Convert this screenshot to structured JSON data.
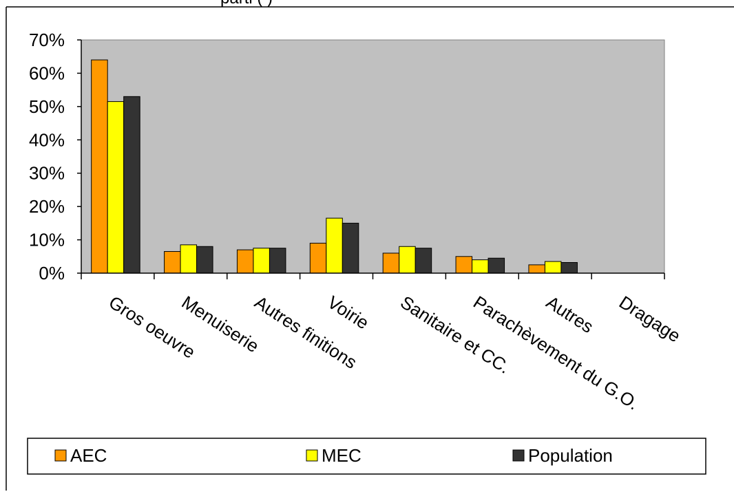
{
  "top_fragment": "parti  (                      )",
  "chart_data": {
    "type": "bar",
    "categories": [
      "Gros oeuvre",
      "Menuiserie",
      "Autres finitions",
      "Voirie",
      "Sanitaire et CC.",
      "Parachèvement du G.O.",
      "Autres",
      "Dragage"
    ],
    "series": [
      {
        "name": "AEC",
        "color": "#ff9900",
        "values": [
          64,
          6.5,
          7,
          9,
          6,
          5,
          2.5,
          0
        ]
      },
      {
        "name": "MEC",
        "color": "#ffff00",
        "values": [
          51.5,
          8.5,
          7.5,
          16.5,
          8,
          4,
          3.5,
          0
        ]
      },
      {
        "name": "Population",
        "color": "#333333",
        "values": [
          53,
          8,
          7.5,
          15,
          7.5,
          4.5,
          3.2,
          0
        ]
      }
    ],
    "ylim": [
      0,
      70
    ],
    "yticks": [
      "0%",
      "10%",
      "20%",
      "30%",
      "40%",
      "50%",
      "60%",
      "70%"
    ],
    "plot_background": "#c0c0c0",
    "legend_position": "bottom"
  }
}
